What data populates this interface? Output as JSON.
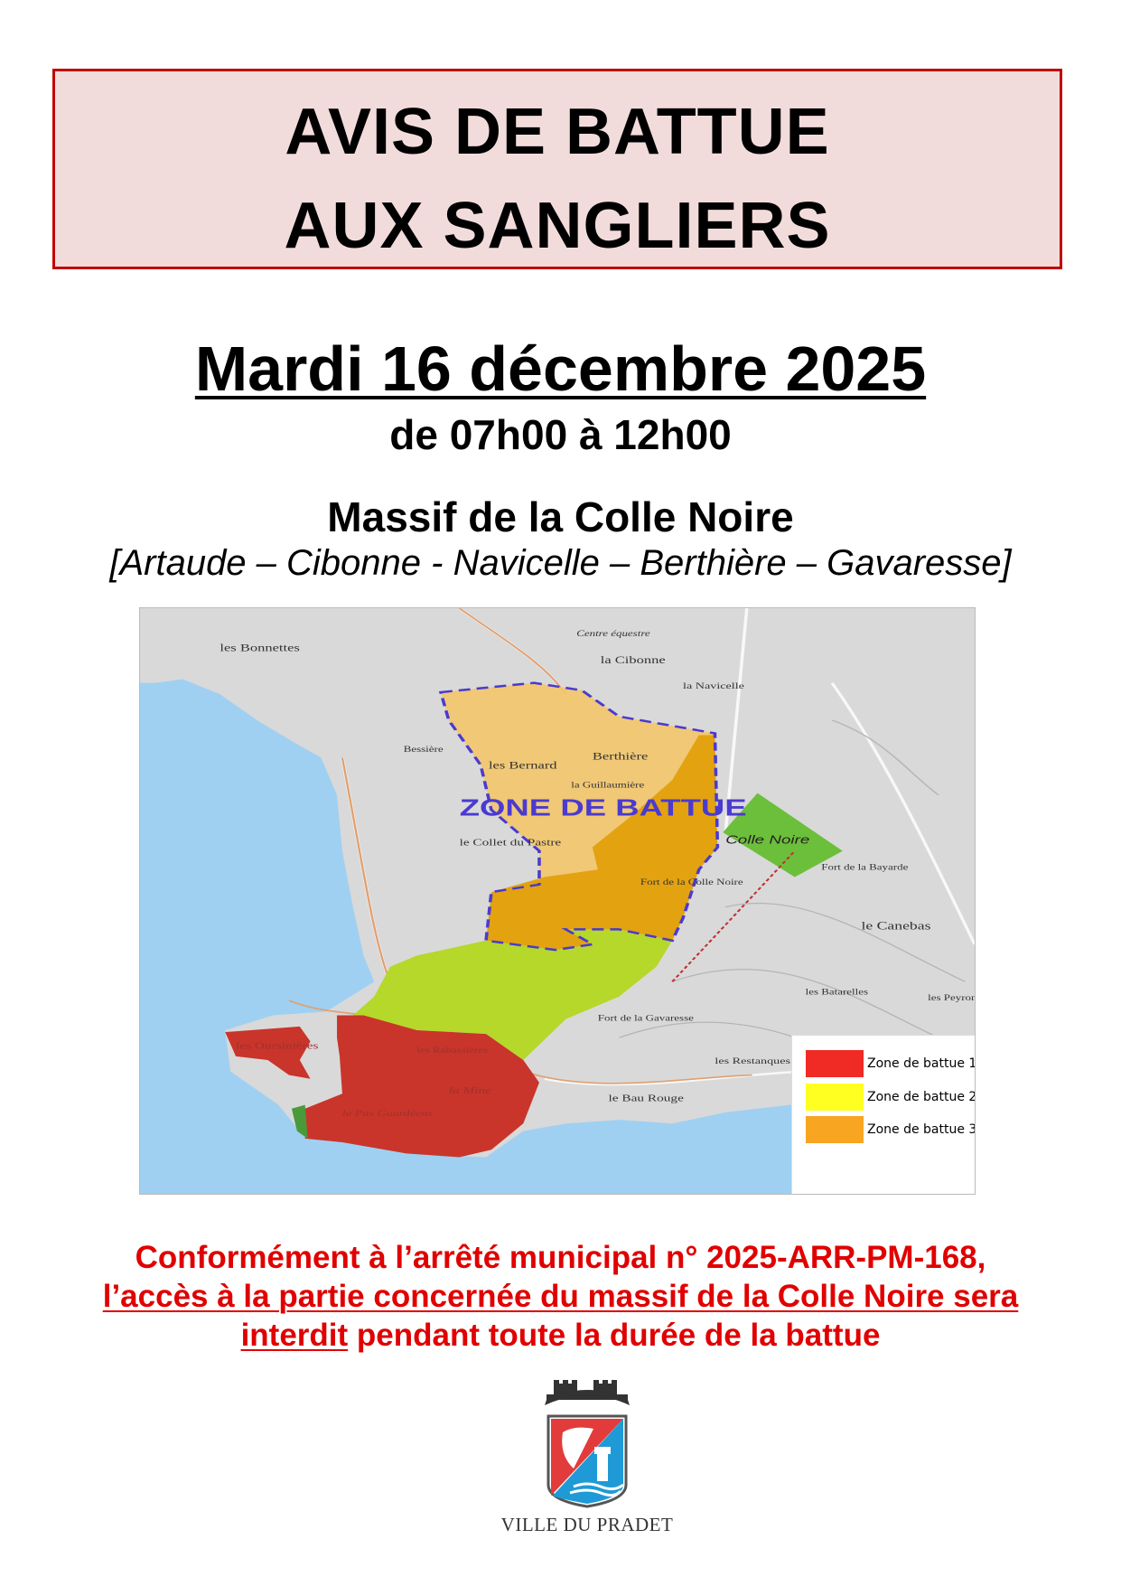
{
  "header": {
    "line1": "AVIS DE BATTUE",
    "line2": "AUX SANGLIERS"
  },
  "date": "Mardi 16 décembre 2025",
  "time": "de 07h00 à 12h00",
  "location": {
    "title": "Massif de la Colle Noire",
    "places": "[Artaude – Cibonne - Navicelle – Berthière – Gavaresse]"
  },
  "map": {
    "zone_label": "ZONE DE BATTUE",
    "place_labels": [
      "les Bonnettes",
      "Centre équestre",
      "la Cibonne",
      "la Navicelle",
      "Bessière",
      "les Bernard",
      "Berthière",
      "la Guillaumière",
      "le Collet du Pastre",
      "Colle Noire",
      "Fort de la Bayarde",
      "Fort de la Colle Noire",
      "le Canebas",
      "les Batarelles",
      "les Peyron",
      "Fort de la Gavaresse",
      "les Restanques du Bau Rouge",
      "le Bau Rouge",
      "les Oursinières",
      "les Rabassières",
      "la Mine",
      "le Pas Guardéens"
    ],
    "colors": {
      "zone1": "#f02a24",
      "zone2": "#ffff22",
      "zone3": "#f8a522",
      "colle_noire": "#6cbf3a",
      "sea": "#9fd0f2",
      "boundary": "#4a3ad0"
    },
    "legend": [
      {
        "label": "Zone de battue 1",
        "color": "#f02a24"
      },
      {
        "label": "Zone de battue 2",
        "color": "#ffff22"
      },
      {
        "label": "Zone de battue 3",
        "color": "#f8a522"
      }
    ]
  },
  "notice": {
    "line1": "Conformément à l’arrêté municipal n° 2025-ARR-PM-168,",
    "line2": "l’accès à la partie concernée du massif de la Colle Noire sera",
    "line3_underlined": "interdit",
    "line3_rest": " pendant toute la durée de la battue",
    "color": "#e00000"
  },
  "logo": {
    "text": "VILLE DU PRADET"
  }
}
